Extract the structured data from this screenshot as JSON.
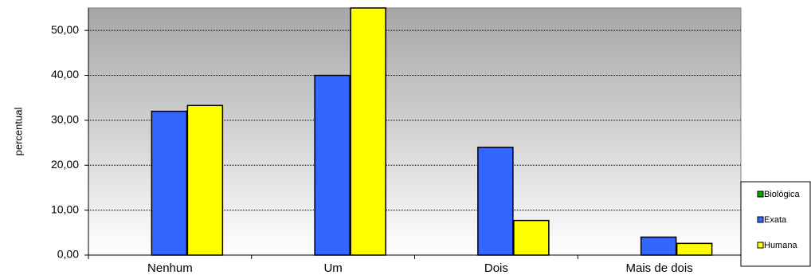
{
  "chart_data": {
    "type": "bar",
    "title": "",
    "xlabel": "",
    "ylabel": "percentual",
    "categories": [
      "Nenhum",
      "Um",
      "Dois",
      "Mais de dois"
    ],
    "series": [
      {
        "name": "Biológica",
        "color": "#00aa00",
        "values": [
          0,
          0,
          0,
          0
        ]
      },
      {
        "name": "Exata",
        "color": "#3366ff",
        "values": [
          32.0,
          40.0,
          24.0,
          4.0
        ]
      },
      {
        "name": "Humana",
        "color": "#ffff00",
        "values": [
          33.3,
          55.0,
          7.7,
          2.6
        ]
      }
    ],
    "ylim": [
      0,
      55
    ],
    "yticks": [
      0,
      10,
      20,
      30,
      40,
      50
    ],
    "ytick_labels": [
      "0,00",
      "10,00",
      "20,00",
      "30,00",
      "40,00",
      "50,00"
    ],
    "grid": true,
    "legend_position": "right"
  }
}
